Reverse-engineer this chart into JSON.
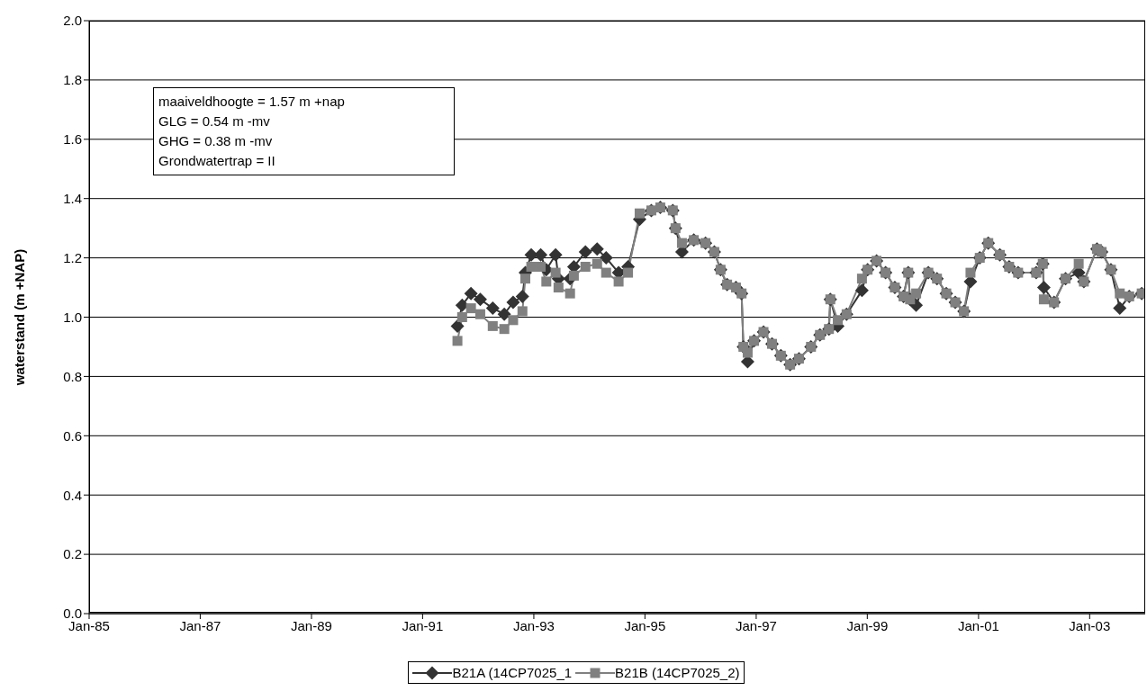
{
  "chart_data": {
    "type": "line",
    "ylabel": "waterstand (m +NAP)",
    "annotations": [
      "maaiveldhoogte = 1.57 m +nap",
      "GLG = 0.54 m -mv",
      "GHG = 0.38 m -mv",
      "Grondwatertrap = II"
    ],
    "xlim": [
      "1985-01-01",
      "2004-01-01"
    ],
    "xticks": [
      {
        "value": "1985-01",
        "label": "Jan-85"
      },
      {
        "value": "1987-01",
        "label": "Jan-87"
      },
      {
        "value": "1989-01",
        "label": "Jan-89"
      },
      {
        "value": "1991-01",
        "label": "Jan-91"
      },
      {
        "value": "1993-01",
        "label": "Jan-93"
      },
      {
        "value": "1995-01",
        "label": "Jan-95"
      },
      {
        "value": "1997-01",
        "label": "Jan-97"
      },
      {
        "value": "1999-01",
        "label": "Jan-99"
      },
      {
        "value": "2001-01",
        "label": "Jan-01"
      },
      {
        "value": "2003-01",
        "label": "Jan-03"
      }
    ],
    "ylim": [
      0,
      2
    ],
    "yticks": [
      {
        "value": 0,
        "label": "0.0"
      },
      {
        "value": 0.2,
        "label": "0.2"
      },
      {
        "value": 0.4,
        "label": "0.4"
      },
      {
        "value": 0.6,
        "label": "0.6"
      },
      {
        "value": 0.8,
        "label": "0.8"
      },
      {
        "value": 1,
        "label": "1.0"
      },
      {
        "value": 1.2,
        "label": "1.2"
      },
      {
        "value": 1.4,
        "label": "1.4"
      },
      {
        "value": 1.6,
        "label": "1.6"
      },
      {
        "value": 1.8,
        "label": "1.8"
      },
      {
        "value": 2,
        "label": "2.0"
      }
    ],
    "grid": "y",
    "legend": "bottom",
    "line_style": "solid",
    "x": [
      "1991-08-18",
      "1991-09-18",
      "1991-11-15",
      "1992-01-15",
      "1992-04-06",
      "1992-06-21",
      "1992-08-18",
      "1992-10-18",
      "1992-11-06",
      "1992-12-15",
      "1993-02-15",
      "1993-03-24",
      "1993-05-24",
      "1993-06-12",
      "1993-08-27",
      "1993-09-21",
      "1993-12-06",
      "1994-02-21",
      "1994-04-21",
      "1994-07-12",
      "1994-09-12",
      "1994-11-27",
      "1995-02-12",
      "1995-04-12",
      "1995-07-03",
      "1995-07-21",
      "1995-09-01",
      "1995-11-18",
      "1996-02-03",
      "1996-04-01",
      "1996-05-12",
      "1996-06-24",
      "1996-08-21",
      "1996-09-27",
      "1996-10-09",
      "1996-11-06",
      "1996-12-18",
      "1997-02-18",
      "1997-04-15",
      "1997-06-12",
      "1997-08-12",
      "1997-10-09",
      "1997-12-27",
      "1998-02-24",
      "1998-04-24",
      "1998-05-03",
      "1998-06-21",
      "1998-08-18",
      "1998-11-27",
      "1999-01-03",
      "1999-03-03",
      "1999-05-01",
      "1999-07-01",
      "1999-08-27",
      "1999-09-27",
      "1999-10-09",
      "1999-11-18",
      "2000-02-06",
      "2000-04-03",
      "2000-06-03",
      "2000-08-01",
      "2000-09-27",
      "2000-11-09",
      "2001-01-09",
      "2001-03-06",
      "2001-05-21",
      "2001-07-21",
      "2001-09-18",
      "2002-01-15",
      "2002-02-27",
      "2002-03-06",
      "2002-05-12",
      "2002-07-27",
      "2002-10-21",
      "2002-11-24",
      "2003-02-18",
      "2003-03-21",
      "2003-05-21",
      "2003-07-18",
      "2003-09-18",
      "2003-12-09"
    ],
    "series": [
      {
        "name": "B21A (14CP7025_1",
        "color": "#333333",
        "marker": "diamond",
        "values": [
          0.97,
          1.04,
          1.08,
          1.06,
          1.03,
          1.01,
          1.05,
          1.07,
          1.15,
          1.21,
          1.21,
          1.16,
          1.21,
          1.13,
          1.13,
          1.17,
          1.22,
          1.23,
          1.2,
          1.15,
          1.17,
          1.33,
          1.36,
          1.37,
          1.36,
          1.3,
          1.22,
          1.26,
          1.25,
          1.22,
          1.16,
          1.11,
          1.1,
          1.08,
          0.9,
          0.85,
          0.92,
          0.95,
          0.91,
          0.87,
          0.84,
          0.86,
          0.9,
          0.94,
          0.96,
          1.06,
          0.97,
          1.01,
          1.09,
          1.16,
          1.19,
          1.15,
          1.1,
          1.07,
          1.15,
          1.06,
          1.04,
          1.15,
          1.13,
          1.08,
          1.05,
          1.02,
          1.12,
          1.2,
          1.25,
          1.21,
          1.17,
          1.15,
          1.15,
          1.18,
          1.1,
          1.05,
          1.13,
          1.15,
          1.12,
          1.23,
          1.22,
          1.16,
          1.03,
          1.07,
          1.08
        ]
      },
      {
        "name": "B21B (14CP7025_2)",
        "color": "#808080",
        "marker": "square",
        "values": [
          0.92,
          1.0,
          1.03,
          1.01,
          0.97,
          0.96,
          0.99,
          1.02,
          1.13,
          1.17,
          1.17,
          1.12,
          1.15,
          1.1,
          1.08,
          1.14,
          1.17,
          1.18,
          1.15,
          1.12,
          1.15,
          1.35,
          1.36,
          1.37,
          1.36,
          1.3,
          1.25,
          1.26,
          1.25,
          1.22,
          1.16,
          1.11,
          1.1,
          1.08,
          0.9,
          0.88,
          0.92,
          0.95,
          0.91,
          0.87,
          0.84,
          0.86,
          0.9,
          0.94,
          0.96,
          1.06,
          0.99,
          1.01,
          1.13,
          1.16,
          1.19,
          1.15,
          1.1,
          1.07,
          1.15,
          1.06,
          1.08,
          1.15,
          1.13,
          1.08,
          1.05,
          1.02,
          1.15,
          1.2,
          1.25,
          1.21,
          1.17,
          1.15,
          1.15,
          1.18,
          1.06,
          1.05,
          1.13,
          1.18,
          1.12,
          1.23,
          1.22,
          1.16,
          1.08,
          1.07,
          1.08
        ]
      }
    ]
  }
}
